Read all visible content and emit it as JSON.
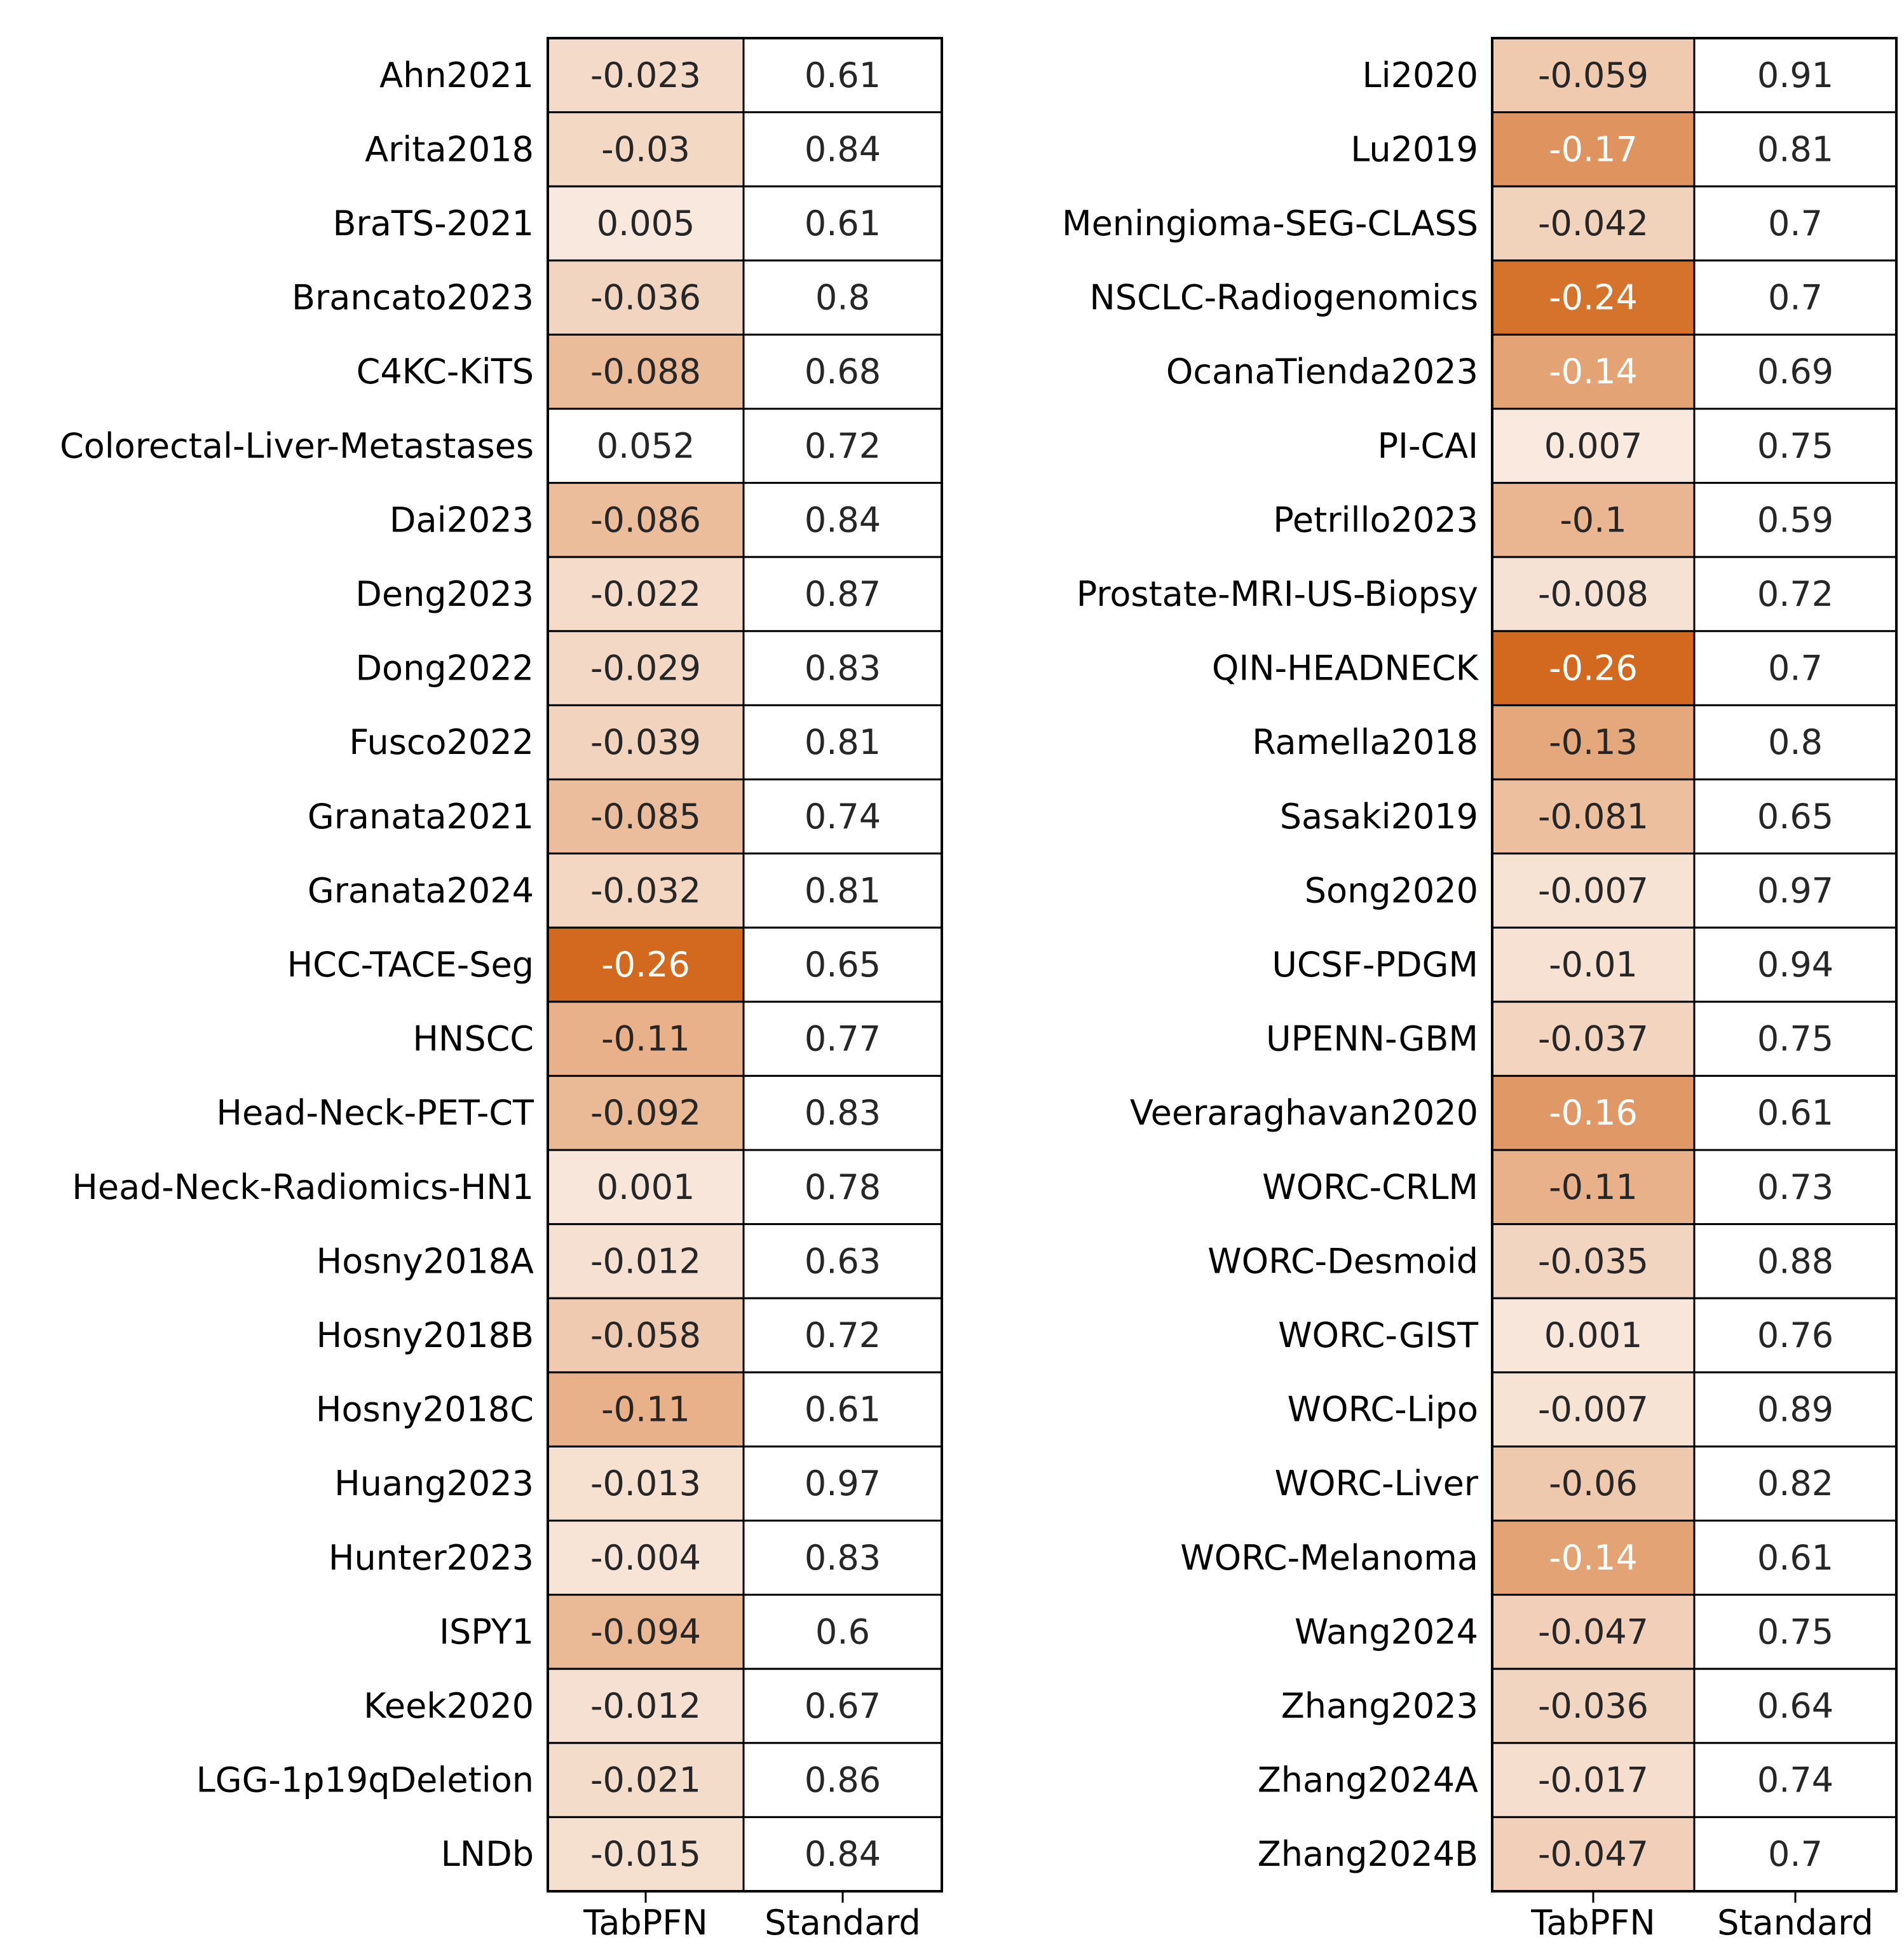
{
  "chart_data": [
    {
      "type": "heatmap",
      "columns": [
        "TabPFN",
        "Standard"
      ],
      "rows": [
        {
          "label": "Ahn2021",
          "tabpfn": "-0.023",
          "standard": "0.61"
        },
        {
          "label": "Arita2018",
          "tabpfn": "-0.03",
          "standard": "0.84"
        },
        {
          "label": "BraTS-2021",
          "tabpfn": "0.005",
          "standard": "0.61"
        },
        {
          "label": "Brancato2023",
          "tabpfn": "-0.036",
          "standard": "0.8"
        },
        {
          "label": "C4KC-KiTS",
          "tabpfn": "-0.088",
          "standard": "0.68"
        },
        {
          "label": "Colorectal-Liver-Metastases",
          "tabpfn": "0.052",
          "standard": "0.72"
        },
        {
          "label": "Dai2023",
          "tabpfn": "-0.086",
          "standard": "0.84"
        },
        {
          "label": "Deng2023",
          "tabpfn": "-0.022",
          "standard": "0.87"
        },
        {
          "label": "Dong2022",
          "tabpfn": "-0.029",
          "standard": "0.83"
        },
        {
          "label": "Fusco2022",
          "tabpfn": "-0.039",
          "standard": "0.81"
        },
        {
          "label": "Granata2021",
          "tabpfn": "-0.085",
          "standard": "0.74"
        },
        {
          "label": "Granata2024",
          "tabpfn": "-0.032",
          "standard": "0.81"
        },
        {
          "label": "HCC-TACE-Seg",
          "tabpfn": "-0.26",
          "standard": "0.65"
        },
        {
          "label": "HNSCC",
          "tabpfn": "-0.11",
          "standard": "0.77"
        },
        {
          "label": "Head-Neck-PET-CT",
          "tabpfn": "-0.092",
          "standard": "0.83"
        },
        {
          "label": "Head-Neck-Radiomics-HN1",
          "tabpfn": "0.001",
          "standard": "0.78"
        },
        {
          "label": "Hosny2018A",
          "tabpfn": "-0.012",
          "standard": "0.63"
        },
        {
          "label": "Hosny2018B",
          "tabpfn": "-0.058",
          "standard": "0.72"
        },
        {
          "label": "Hosny2018C",
          "tabpfn": "-0.11",
          "standard": "0.61"
        },
        {
          "label": "Huang2023",
          "tabpfn": "-0.013",
          "standard": "0.97"
        },
        {
          "label": "Hunter2023",
          "tabpfn": "-0.004",
          "standard": "0.83"
        },
        {
          "label": "ISPY1",
          "tabpfn": "-0.094",
          "standard": "0.6"
        },
        {
          "label": "Keek2020",
          "tabpfn": "-0.012",
          "standard": "0.67"
        },
        {
          "label": "LGG-1p19qDeletion",
          "tabpfn": "-0.021",
          "standard": "0.86"
        },
        {
          "label": "LNDb",
          "tabpfn": "-0.015",
          "standard": "0.84"
        }
      ]
    },
    {
      "type": "heatmap",
      "columns": [
        "TabPFN",
        "Standard"
      ],
      "rows": [
        {
          "label": "Li2020",
          "tabpfn": "-0.059",
          "standard": "0.91"
        },
        {
          "label": "Lu2019",
          "tabpfn": "-0.17",
          "standard": "0.81"
        },
        {
          "label": "Meningioma-SEG-CLASS",
          "tabpfn": "-0.042",
          "standard": "0.7"
        },
        {
          "label": "NSCLC-Radiogenomics",
          "tabpfn": "-0.24",
          "standard": "0.7"
        },
        {
          "label": "OcanaTienda2023",
          "tabpfn": "-0.14",
          "standard": "0.69"
        },
        {
          "label": "PI-CAI",
          "tabpfn": "0.007",
          "standard": "0.75"
        },
        {
          "label": "Petrillo2023",
          "tabpfn": "-0.1",
          "standard": "0.59"
        },
        {
          "label": "Prostate-MRI-US-Biopsy",
          "tabpfn": "-0.008",
          "standard": "0.72"
        },
        {
          "label": "QIN-HEADNECK",
          "tabpfn": "-0.26",
          "standard": "0.7"
        },
        {
          "label": "Ramella2018",
          "tabpfn": "-0.13",
          "standard": "0.8"
        },
        {
          "label": "Sasaki2019",
          "tabpfn": "-0.081",
          "standard": "0.65"
        },
        {
          "label": "Song2020",
          "tabpfn": "-0.007",
          "standard": "0.97"
        },
        {
          "label": "UCSF-PDGM",
          "tabpfn": "-0.01",
          "standard": "0.94"
        },
        {
          "label": "UPENN-GBM",
          "tabpfn": "-0.037",
          "standard": "0.75"
        },
        {
          "label": "Veeraraghavan2020",
          "tabpfn": "-0.16",
          "standard": "0.61"
        },
        {
          "label": "WORC-CRLM",
          "tabpfn": "-0.11",
          "standard": "0.73"
        },
        {
          "label": "WORC-Desmoid",
          "tabpfn": "-0.035",
          "standard": "0.88"
        },
        {
          "label": "WORC-GIST",
          "tabpfn": "0.001",
          "standard": "0.76"
        },
        {
          "label": "WORC-Lipo",
          "tabpfn": "-0.007",
          "standard": "0.89"
        },
        {
          "label": "WORC-Liver",
          "tabpfn": "-0.06",
          "standard": "0.82"
        },
        {
          "label": "WORC-Melanoma",
          "tabpfn": "-0.14",
          "standard": "0.61"
        },
        {
          "label": "Wang2024",
          "tabpfn": "-0.047",
          "standard": "0.75"
        },
        {
          "label": "Zhang2023",
          "tabpfn": "-0.036",
          "standard": "0.64"
        },
        {
          "label": "Zhang2024A",
          "tabpfn": "-0.017",
          "standard": "0.74"
        },
        {
          "label": "Zhang2024B",
          "tabpfn": "-0.047",
          "standard": "0.7"
        }
      ]
    }
  ],
  "colors": {
    "tabpfn_high": "#ffffff",
    "tabpfn_low": "#d2691e",
    "tabpfn_domain": [
      -0.26,
      0.052
    ],
    "standard_cell": "#ffffff",
    "dark_text": "#262626",
    "light_text": "#ffffff",
    "grid": "#000000"
  }
}
